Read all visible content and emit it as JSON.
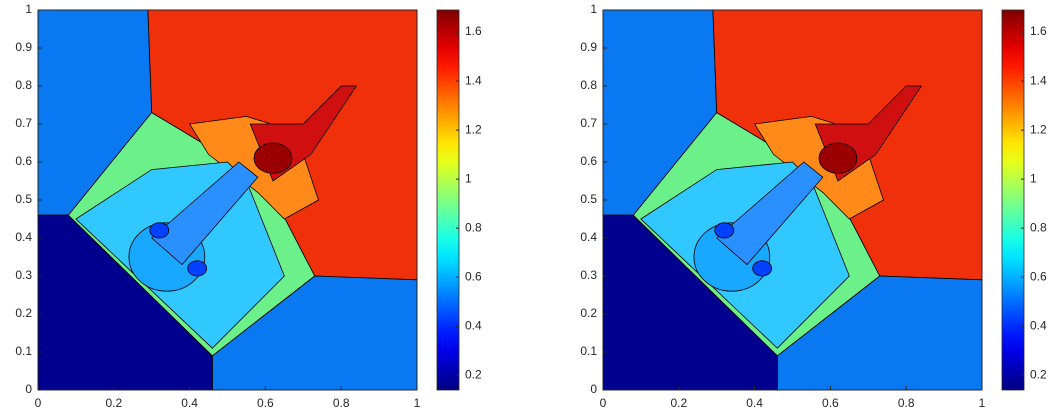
{
  "chart_data": [
    {
      "type": "contour",
      "colormap": "jet",
      "xlim": [
        0,
        1
      ],
      "ylim": [
        0,
        1
      ],
      "xticks": [
        0,
        0.2,
        0.4,
        0.6,
        0.8,
        1
      ],
      "yticks": [
        0,
        0.1,
        0.2,
        0.3,
        0.4,
        0.5,
        0.6,
        0.7,
        0.8,
        0.9,
        1
      ],
      "clim": [
        0.14,
        1.69
      ],
      "cticks": [
        0.2,
        0.4,
        0.6,
        0.8,
        1,
        1.2,
        1.4,
        1.6
      ]
    },
    {
      "type": "contour",
      "colormap": "jet",
      "xlim": [
        0,
        1
      ],
      "ylim": [
        0,
        1
      ],
      "xticks": [
        0,
        0.2,
        0.4,
        0.6,
        0.8,
        1
      ],
      "yticks": [
        0,
        0.1,
        0.2,
        0.3,
        0.4,
        0.5,
        0.6,
        0.7,
        0.8,
        0.9,
        1
      ],
      "clim": [
        0.14,
        1.69
      ],
      "cticks": [
        0.2,
        0.4,
        0.6,
        0.8,
        1,
        1.2,
        1.4,
        1.6
      ]
    }
  ]
}
